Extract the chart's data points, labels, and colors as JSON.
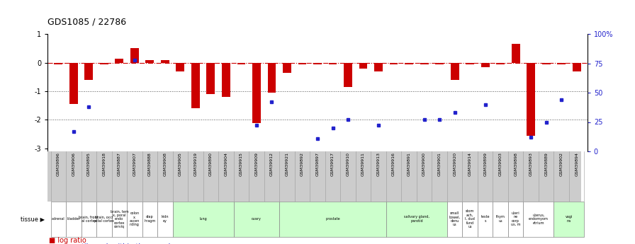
{
  "title": "GDS1085 / 22786",
  "gsm_ids": [
    "GSM39896",
    "GSM39906",
    "GSM39895",
    "GSM39918",
    "GSM39887",
    "GSM39907",
    "GSM39888",
    "GSM39908",
    "GSM39905",
    "GSM39919",
    "GSM39890",
    "GSM39904",
    "GSM39915",
    "GSM39909",
    "GSM39912",
    "GSM39921",
    "GSM39892",
    "GSM39897",
    "GSM39917",
    "GSM39910",
    "GSM39911",
    "GSM39913",
    "GSM39916",
    "GSM39891",
    "GSM39900",
    "GSM39901",
    "GSM39920",
    "GSM39914",
    "GSM39899",
    "GSM39903",
    "GSM39898",
    "GSM39893",
    "GSM39889",
    "GSM39902",
    "GSM39894"
  ],
  "log_ratio": [
    -0.05,
    -1.45,
    -0.6,
    -0.05,
    0.13,
    0.52,
    0.08,
    0.1,
    -0.3,
    -1.6,
    -1.1,
    -1.2,
    -0.05,
    -2.1,
    -1.05,
    -0.35,
    -0.05,
    -0.05,
    -0.05,
    -0.85,
    -0.2,
    -0.3,
    -0.05,
    -0.05,
    -0.05,
    -0.05,
    -0.6,
    -0.05,
    -0.15,
    -0.05,
    0.65,
    -2.55,
    -0.05,
    -0.05,
    -0.3
  ],
  "percentile_rank": [
    null,
    17,
    38,
    null,
    null,
    78,
    null,
    null,
    null,
    null,
    null,
    null,
    null,
    22,
    42,
    null,
    null,
    11,
    20,
    27,
    null,
    22,
    null,
    null,
    27,
    27,
    33,
    null,
    40,
    null,
    null,
    12,
    25,
    44,
    null
  ],
  "tissues_raw": [
    {
      "label": "adrenal",
      "start": 0,
      "end": 1,
      "bg": "#ffffff"
    },
    {
      "label": "bladder",
      "start": 1,
      "end": 2,
      "bg": "#ffffff"
    },
    {
      "label": "brain, front\nal cortex",
      "start": 2,
      "end": 3,
      "bg": "#ffffff"
    },
    {
      "label": "brain, occi\npital cortex",
      "start": 3,
      "end": 4,
      "bg": "#ffffff"
    },
    {
      "label": "brain, tem\nx, poral\nendo\ncortex\ncerviq",
      "start": 4,
      "end": 5,
      "bg": "#ffffff"
    },
    {
      "label": "colon\nx,\nascen\nnding",
      "start": 5,
      "end": 6,
      "bg": "#ffffff"
    },
    {
      "label": "diap\nhragm",
      "start": 6,
      "end": 7,
      "bg": "#ffffff"
    },
    {
      "label": "kidn\ney",
      "start": 7,
      "end": 8,
      "bg": "#ffffff"
    },
    {
      "label": "lung",
      "start": 8,
      "end": 12,
      "bg": "#ccffcc"
    },
    {
      "label": "ovary",
      "start": 12,
      "end": 15,
      "bg": "#ccffcc"
    },
    {
      "label": "prostate",
      "start": 15,
      "end": 22,
      "bg": "#ccffcc"
    },
    {
      "label": "salivary gland,\nparotid",
      "start": 22,
      "end": 26,
      "bg": "#ccffcc"
    },
    {
      "label": "small\nbowel,\ndenu\nus",
      "start": 26,
      "end": 27,
      "bg": "#ffffff"
    },
    {
      "label": "stom\nach,\nI, dud\nfund\nus",
      "start": 27,
      "end": 28,
      "bg": "#ffffff"
    },
    {
      "label": "teste\ns",
      "start": 28,
      "end": 29,
      "bg": "#ffffff"
    },
    {
      "label": "thym\nus",
      "start": 29,
      "end": 30,
      "bg": "#ffffff"
    },
    {
      "label": "uteri\nne\ncorp\nus, m",
      "start": 30,
      "end": 31,
      "bg": "#ffffff"
    },
    {
      "label": "uterus,\nendomyom\netrium",
      "start": 31,
      "end": 33,
      "bg": "#ffffff"
    },
    {
      "label": "vagi\nna",
      "start": 33,
      "end": 35,
      "bg": "#ccffcc"
    }
  ],
  "ylim": [
    -3.1,
    1.0
  ],
  "y2lim": [
    0,
    100
  ],
  "bar_color": "#cc0000",
  "dot_color": "#2222cc",
  "hline_color": "#cc0000",
  "grid_color": "#555555",
  "gsm_bg": "#cccccc",
  "tissue_border": "#888888"
}
